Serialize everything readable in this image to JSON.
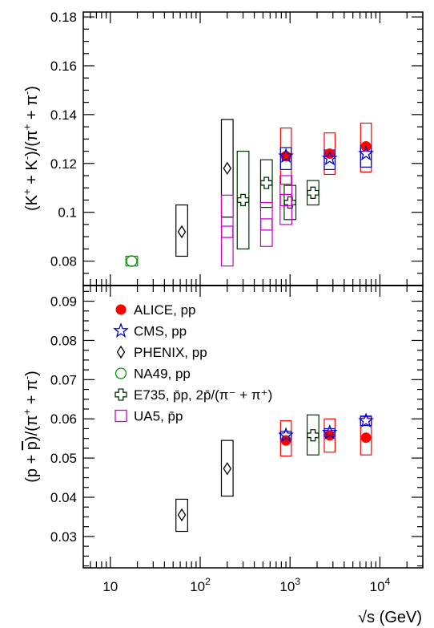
{
  "chart_data": [
    {
      "type": "scatter",
      "panel": "top",
      "xscale": "log",
      "xlim": [
        5,
        30000
      ],
      "ylim": [
        0.07,
        0.182
      ],
      "ylabel_parts": {
        "a": "(K",
        "sup1": "+",
        "b": " + K",
        "sup2": "-",
        "c": ")/(π",
        "sup3": "+",
        "d": " + π",
        "sup4": "-",
        "e": ")"
      },
      "yticks": [
        {
          "v": 0.08,
          "label": "0.08"
        },
        {
          "v": 0.1,
          "label": "0.1"
        },
        {
          "v": 0.12,
          "label": "0.12"
        },
        {
          "v": 0.14,
          "label": "0.14"
        },
        {
          "v": 0.16,
          "label": "0.16"
        },
        {
          "v": 0.18,
          "label": "0.18"
        }
      ],
      "series": [
        {
          "key": "alice",
          "points": [
            {
              "x": 900,
              "y": 0.123,
              "sys": [
                0.1115,
                0.1345
              ],
              "sysw": 0.12
            },
            {
              "x": 2760,
              "y": 0.124,
              "sys": [
                0.1155,
                0.1325
              ],
              "sysw": 0.12
            },
            {
              "x": 7000,
              "y": 0.127,
              "sys": [
                0.1165,
                0.1365
              ],
              "sysw": 0.12
            }
          ]
        },
        {
          "key": "cms",
          "points": [
            {
              "x": 900,
              "y": 0.123,
              "sys": [
                0.1175,
                0.1265
              ],
              "sysw": 0.12
            },
            {
              "x": 2760,
              "y": 0.122,
              "sys": [
                0.1175,
                0.1255
              ],
              "sysw": 0.12
            },
            {
              "x": 7000,
              "y": 0.124,
              "sys": [
                0.1185,
                0.1275
              ],
              "sysw": 0.12
            }
          ]
        },
        {
          "key": "phenix",
          "points": [
            {
              "x": 62.4,
              "y": 0.092,
              "sys": [
                0.082,
                0.103
              ],
              "sysw": 0.13
            },
            {
              "x": 200,
              "y": 0.118,
              "sys": [
                0.098,
                0.138
              ],
              "sysw": 0.13
            }
          ]
        },
        {
          "key": "na49",
          "points": [
            {
              "x": 17.3,
              "y": 0.08,
              "sys": [
                0.078,
                0.082
              ],
              "sysw": 0.13
            }
          ]
        },
        {
          "key": "e735",
          "points": [
            {
              "x": 300,
              "y": 0.105,
              "sys": [
                0.085,
                0.125
              ],
              "sysw": 0.13
            },
            {
              "x": 546,
              "y": 0.112,
              "sys": [
                0.102,
                0.1215
              ],
              "sysw": 0.13
            },
            {
              "x": 1000,
              "y": 0.104,
              "sys": [
                0.097,
                0.111
              ],
              "sysw": 0.13
            },
            {
              "x": 1800,
              "y": 0.108,
              "sys": [
                0.103,
                0.113
              ],
              "sysw": 0.13
            }
          ]
        },
        {
          "key": "ua5",
          "points": [
            {
              "x": 200,
              "y": 0.092,
              "sys": [
                0.078,
                0.107
              ],
              "sysw": 0.13
            },
            {
              "x": 546,
              "y": 0.095,
              "sys": [
                0.086,
                0.104
              ],
              "sysw": 0.13
            },
            {
              "x": 900,
              "y": 0.105,
              "sys": [
                0.095,
                0.115
              ],
              "sysw": 0.13
            }
          ]
        }
      ]
    },
    {
      "type": "scatter",
      "panel": "bottom",
      "xscale": "log",
      "xlim": [
        5,
        30000
      ],
      "ylim": [
        0.022,
        0.094
      ],
      "xlabel": "√s (GeV)",
      "xticks": [
        {
          "v": 10,
          "base": "10",
          "sup": ""
        },
        {
          "v": 100,
          "base": "10",
          "sup": "2"
        },
        {
          "v": 1000,
          "base": "10",
          "sup": "3"
        },
        {
          "v": 10000,
          "base": "10",
          "sup": "4"
        }
      ],
      "ylabel_parts": {
        "a": "(p + ",
        "pbar": "p",
        "b": ")/(π",
        "sup1": "+",
        "c": " + π",
        "sup2": "-",
        "d": ")"
      },
      "yticks": [
        {
          "v": 0.03,
          "label": "0.03"
        },
        {
          "v": 0.04,
          "label": "0.04"
        },
        {
          "v": 0.05,
          "label": "0.05"
        },
        {
          "v": 0.06,
          "label": "0.06"
        },
        {
          "v": 0.07,
          "label": "0.07"
        },
        {
          "v": 0.08,
          "label": "0.08"
        },
        {
          "v": 0.09,
          "label": "0.09"
        }
      ],
      "series": [
        {
          "key": "alice",
          "points": [
            {
              "x": 900,
              "y": 0.0545,
              "sys": [
                0.0505,
                0.0595
              ],
              "sysw": 0.12
            },
            {
              "x": 2760,
              "y": 0.0558,
              "sys": [
                0.0515,
                0.06
              ],
              "sysw": 0.12
            },
            {
              "x": 7000,
              "y": 0.0552,
              "sys": [
                0.0508,
                0.0605
              ],
              "sysw": 0.12
            }
          ]
        },
        {
          "key": "cms",
          "points": [
            {
              "x": 900,
              "y": 0.0558,
              "sys": [
                0.0548,
                0.0568
              ],
              "sysw": 0.12
            },
            {
              "x": 2760,
              "y": 0.0565,
              "sys": [
                0.0555,
                0.0575
              ],
              "sysw": 0.12
            },
            {
              "x": 7000,
              "y": 0.0595,
              "sys": [
                0.0583,
                0.0607
              ],
              "sysw": 0.12
            }
          ]
        },
        {
          "key": "phenix",
          "points": [
            {
              "x": 62.4,
              "y": 0.0355,
              "sys": [
                0.0313,
                0.0395
              ],
              "sysw": 0.13
            },
            {
              "x": 200,
              "y": 0.0473,
              "sys": [
                0.0403,
                0.0545
              ],
              "sysw": 0.13
            }
          ]
        },
        {
          "key": "e735",
          "points": [
            {
              "x": 1800,
              "y": 0.0558,
              "sys": [
                0.0508,
                0.061
              ],
              "sysw": 0.13
            }
          ]
        }
      ]
    }
  ],
  "legend": {
    "placement": "top-left of bottom panel",
    "entries": [
      {
        "key": "alice",
        "text": "ALICE, pp"
      },
      {
        "key": "cms",
        "text": "CMS, pp"
      },
      {
        "key": "phenix",
        "text": "PHENIX, pp"
      },
      {
        "key": "na49",
        "text": "NA49, pp"
      },
      {
        "key": "e735",
        "text": "E735,  p̄p, 2p̄/(π⁻ + π⁺)"
      },
      {
        "key": "ua5",
        "text": "UA5, p̄p"
      }
    ]
  },
  "colors": {
    "alice": "#ff0000",
    "cms": "#0000cc",
    "phenix": "#000000",
    "na49": "#009900",
    "e735": "#003300",
    "ua5": "#cc00cc"
  }
}
